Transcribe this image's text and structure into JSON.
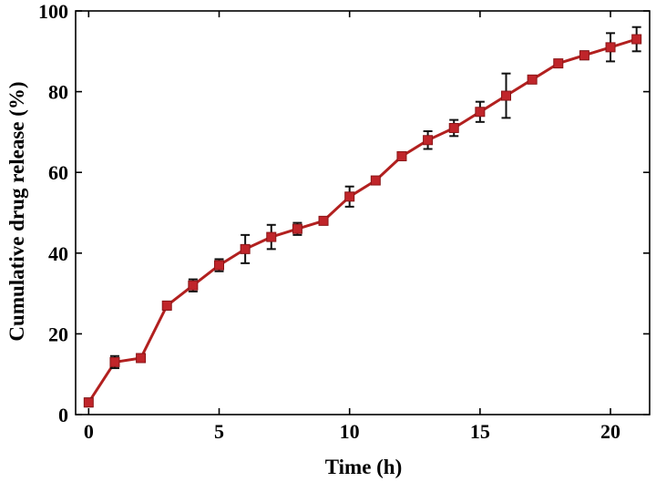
{
  "chart_data": {
    "type": "line",
    "title": "",
    "xlabel": "Time (h)",
    "ylabel": "Cumulative drug release (%)",
    "xlim": [
      -0.5,
      21.5
    ],
    "ylim": [
      0,
      100
    ],
    "xticks": [
      0,
      5,
      10,
      15,
      20
    ],
    "yticks": [
      0,
      20,
      40,
      60,
      80,
      100
    ],
    "grid": false,
    "legend": "none",
    "colors": {
      "line": "#b2201f",
      "marker": "#c0252a",
      "error_bar": "#111111"
    },
    "series": [
      {
        "x": [
          0,
          1,
          2,
          3,
          4,
          5,
          6,
          7,
          8,
          9,
          10,
          11,
          12,
          13,
          14,
          15,
          16,
          17,
          18,
          19,
          20,
          21
        ],
        "y": [
          3,
          13,
          14,
          27,
          32,
          37,
          41,
          44,
          46,
          48,
          54,
          58,
          64,
          68,
          71,
          75,
          79,
          83,
          87,
          89,
          91,
          93
        ],
        "error": [
          1,
          1.5,
          0.5,
          1,
          1.5,
          1.5,
          3.5,
          3,
          1.5,
          0.5,
          2.5,
          0.8,
          0.5,
          2.2,
          2,
          2.5,
          5.5,
          0.8,
          0.5,
          1,
          3.5,
          3
        ]
      }
    ]
  }
}
